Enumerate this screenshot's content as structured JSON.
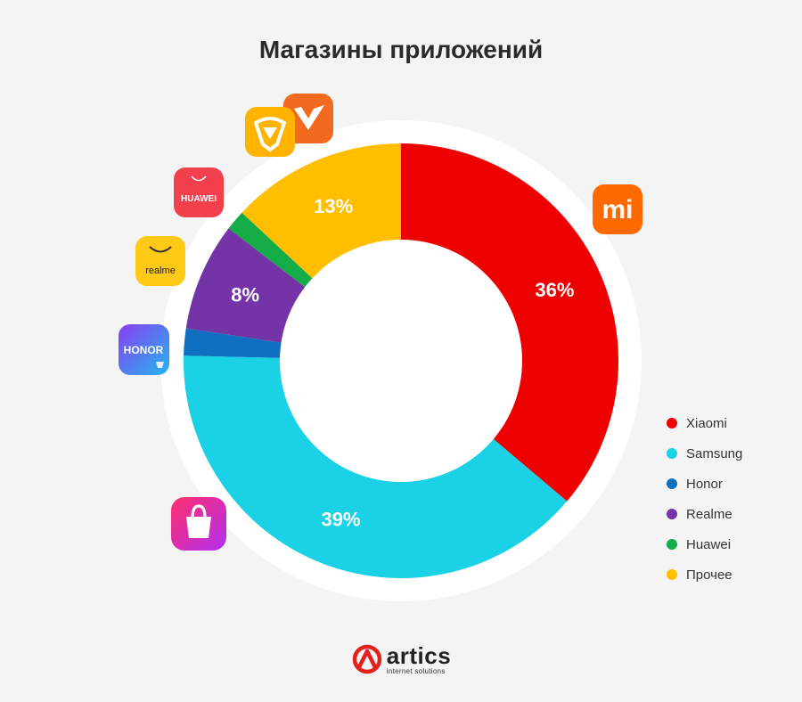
{
  "title": "Магазины приложений",
  "chart_data": {
    "type": "pie",
    "categories": [
      "Xiaomi",
      "Samsung",
      "Honor",
      "Realme",
      "Huawei",
      "Прочее"
    ],
    "values": [
      36,
      39,
      2,
      8,
      1.5,
      13
    ],
    "labels": [
      "36%",
      "39%",
      "",
      "8%",
      "",
      "13%"
    ],
    "colors": [
      "#ee0000",
      "#1bd1e5",
      "#0f6fc0",
      "#7433a6",
      "#13ac47",
      "#ffbf00"
    ],
    "legend_position": "right"
  },
  "legend": [
    {
      "label": "Xiaomi",
      "color": "#ee0000"
    },
    {
      "label": "Samsung",
      "color": "#1bd1e5"
    },
    {
      "label": "Honor",
      "color": "#0f6fc0"
    },
    {
      "label": "Realme",
      "color": "#7433a6"
    },
    {
      "label": "Huawei",
      "color": "#13ac47"
    },
    {
      "label": "Прочее",
      "color": "#ffbf00"
    }
  ],
  "icons": {
    "xiaomi": {
      "text": "mi"
    },
    "huawei": {
      "text": "HUAWEI"
    },
    "realme": {
      "text": "realme"
    },
    "honor": {
      "text": "HONOR"
    }
  },
  "logo": {
    "name": "artics",
    "tagline": "internet solutions"
  }
}
